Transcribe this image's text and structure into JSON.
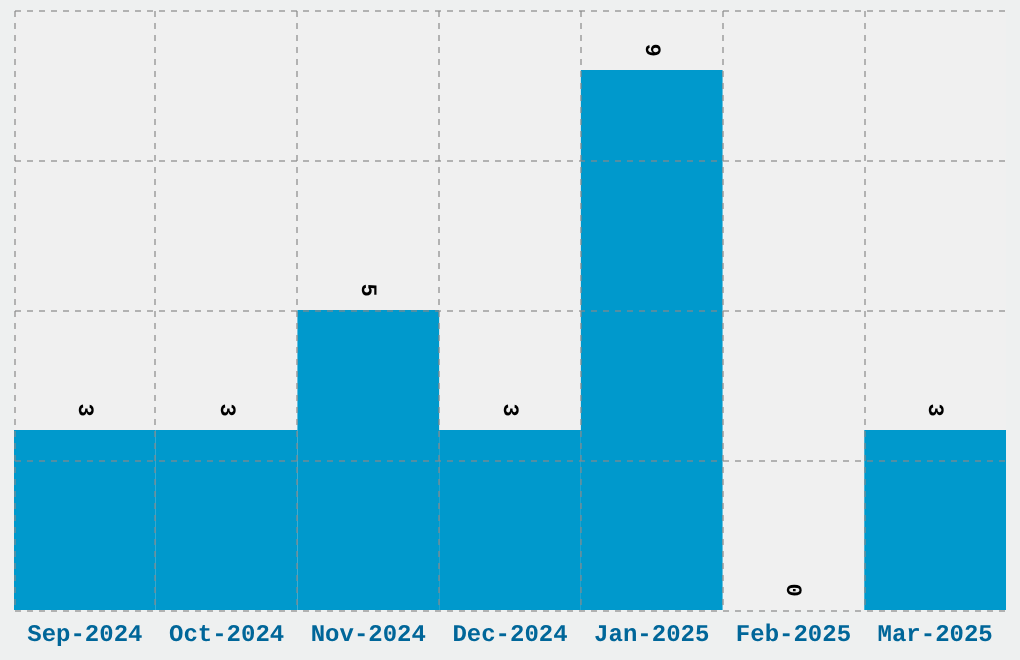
{
  "chart_data": {
    "type": "bar",
    "categories": [
      "Sep-2024",
      "Oct-2024",
      "Nov-2024",
      "Dec-2024",
      "Jan-2025",
      "Feb-2025",
      "Mar-2025"
    ],
    "values": [
      3,
      3,
      5,
      3,
      9,
      0,
      3
    ],
    "color": "#0099cc",
    "ylim": [
      0,
      10
    ],
    "yticks": [
      {
        "value": 0,
        "label": null
      },
      {
        "value": 2.5,
        "label": null
      },
      {
        "value": 5,
        "label": null
      },
      {
        "value": 7.5,
        "label": null
      },
      {
        "value": 10,
        "label": null
      }
    ],
    "tick_labels": "x",
    "grid": true,
    "data_labels": true
  }
}
